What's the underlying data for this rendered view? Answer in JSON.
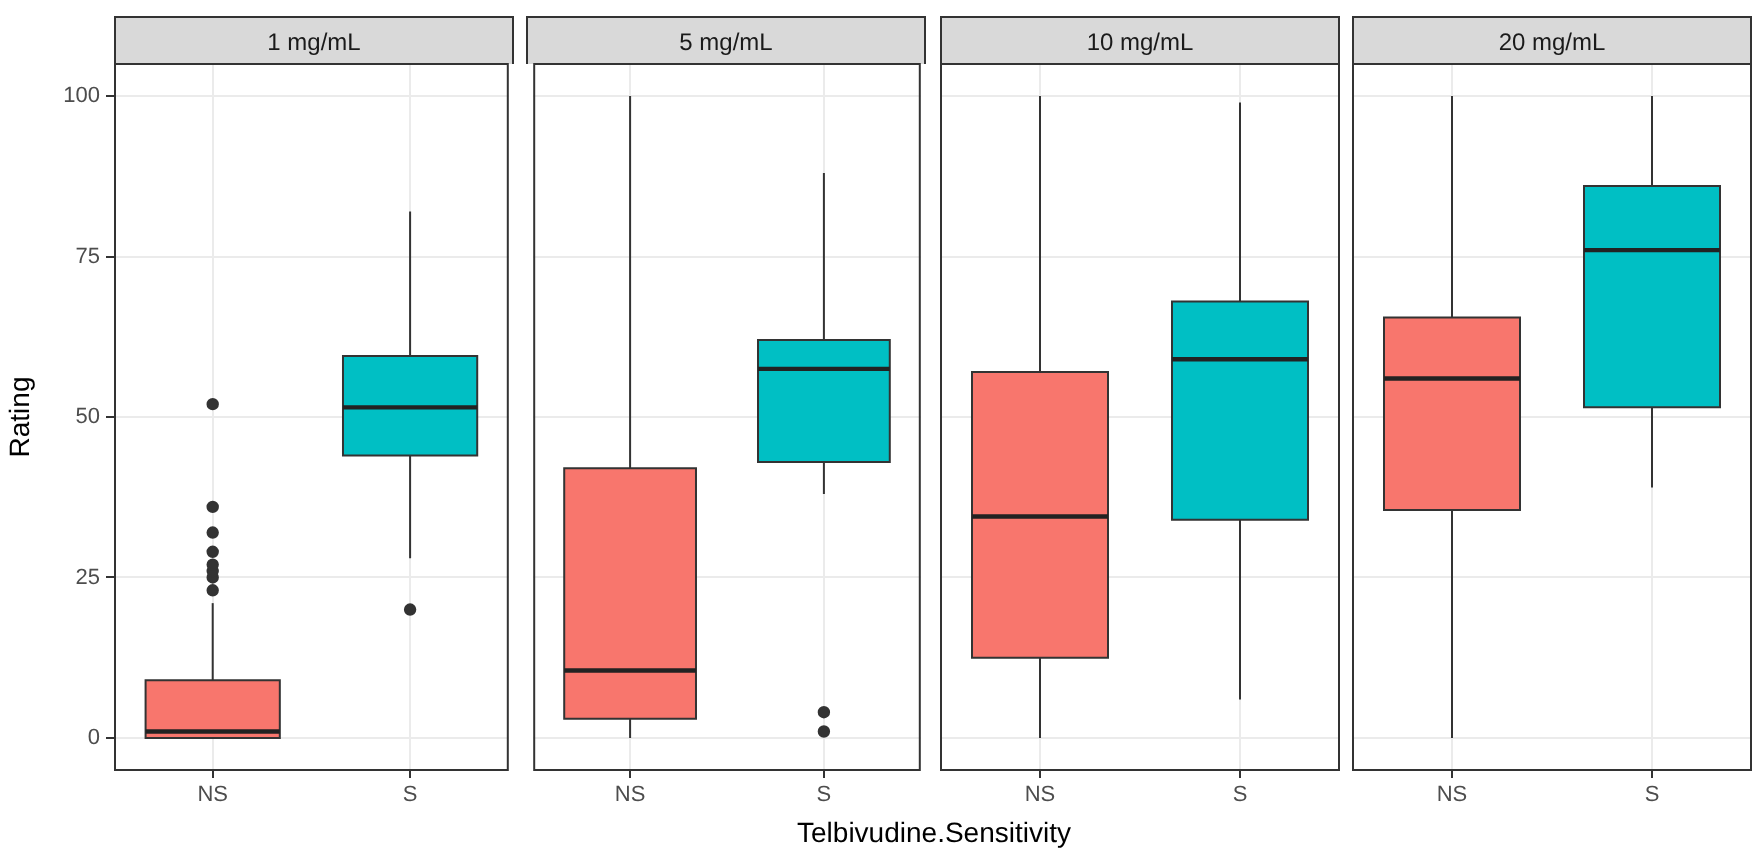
{
  "chart_data": [
    {
      "type": "box",
      "title": "1 mg/mL",
      "ylabel": "Rating",
      "categories": [
        "NS",
        "S"
      ],
      "colors": [
        "#f8766d",
        "#00bfc4"
      ],
      "ylim": [
        -5,
        105
      ],
      "yticks": [
        0,
        25,
        50,
        75,
        100
      ],
      "grid": true,
      "boxes": [
        {
          "low": 0,
          "q1": 0,
          "median": 1,
          "q3": 9,
          "high": 21,
          "outliers": [
            23,
            25,
            26,
            27,
            29,
            32,
            36,
            52
          ]
        },
        {
          "low": 28,
          "q1": 44,
          "median": 51.5,
          "q3": 59.5,
          "high": 82,
          "outliers": [
            20
          ]
        }
      ]
    },
    {
      "type": "box",
      "title": "5 mg/mL",
      "xlabel": "Telbivudine.Sensitivity",
      "categories": [
        "NS",
        "S"
      ],
      "colors": [
        "#f8766d",
        "#00bfc4"
      ],
      "ylim": [
        -5,
        105
      ],
      "yticks": [
        0,
        25,
        50,
        75,
        100
      ],
      "grid": true,
      "tick_labels": "x",
      "boxes": [
        {
          "low": 0,
          "q1": 3,
          "median": 10.5,
          "q3": 42,
          "high": 100
        },
        {
          "low": 38,
          "q1": 43,
          "median": 57.5,
          "q3": 62,
          "high": 88,
          "outliers": [
            1,
            4
          ]
        }
      ]
    },
    {
      "type": "box",
      "title": "10 mg/mL",
      "categories": [
        "NS",
        "S"
      ],
      "colors": [
        "#f8766d",
        "#00bfc4"
      ],
      "ylim": [
        -5,
        105
      ],
      "yticks": [
        0,
        25,
        50,
        75,
        100
      ],
      "grid": true,
      "tick_labels": "x",
      "boxes": [
        {
          "low": 0,
          "q1": 12.5,
          "median": 34.5,
          "q3": 57,
          "high": 100
        },
        {
          "low": 6,
          "q1": 34,
          "median": 59,
          "q3": 68,
          "high": 99
        }
      ]
    },
    {
      "type": "box",
      "title": "20 mg/mL",
      "categories": [
        "NS",
        "S"
      ],
      "colors": [
        "#f8766d",
        "#00bfc4"
      ],
      "ylim": [
        -5,
        105
      ],
      "yticks": [
        0,
        25,
        50,
        75,
        100
      ],
      "grid": true,
      "tick_labels": "x",
      "boxes": [
        {
          "low": 0,
          "q1": 35.5,
          "median": 56,
          "q3": 65.5,
          "high": 100
        },
        {
          "low": 39,
          "q1": 51.5,
          "median": 76,
          "q3": 86,
          "high": 100
        }
      ]
    }
  ]
}
